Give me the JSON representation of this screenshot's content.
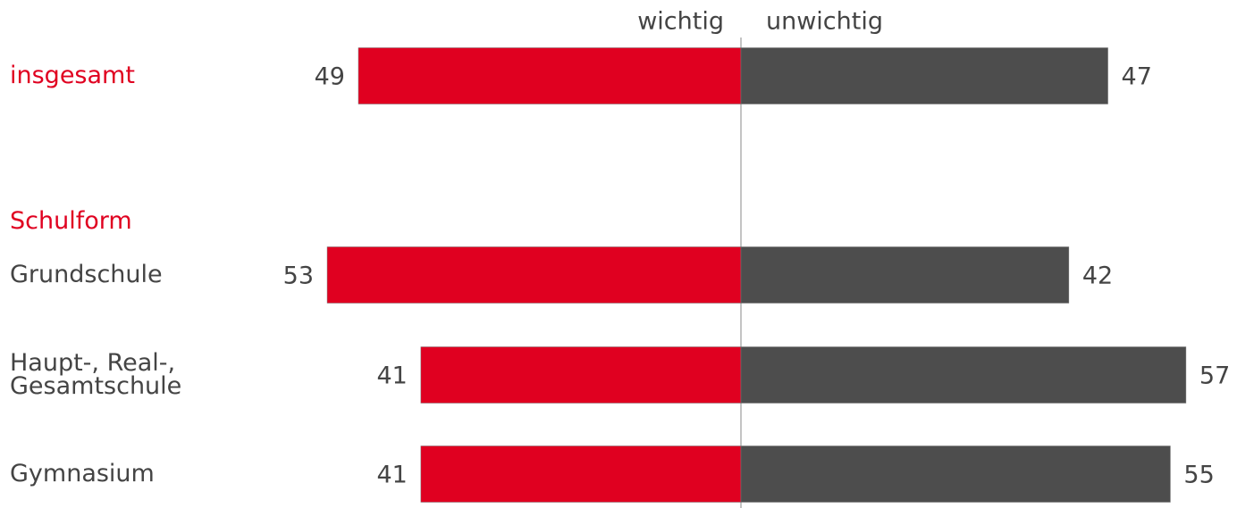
{
  "chart_data": {
    "type": "diverging_bar",
    "categories": [
      "insgesamt",
      "Grundschule",
      "Haupt-, Real-,\nGesamtschule",
      "Gymnasium"
    ],
    "section_label": "Schulform",
    "series": [
      {
        "name": "wichtig",
        "color": "#e00020",
        "values": [
          49,
          53,
          41,
          41
        ]
      },
      {
        "name": "unwichtig",
        "color": "#4d4d4d",
        "values": [
          47,
          42,
          57,
          55
        ]
      }
    ]
  }
}
